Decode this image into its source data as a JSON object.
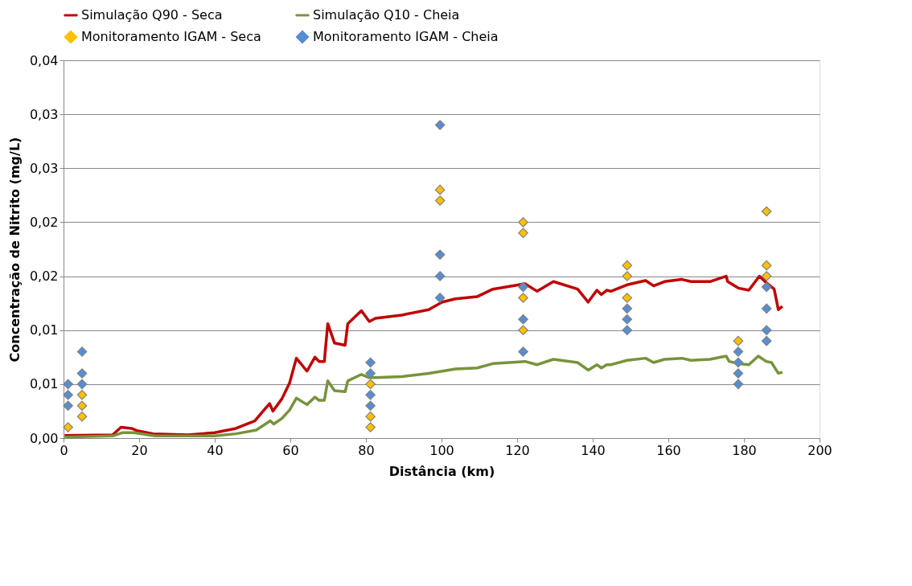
{
  "chart_data": {
    "type": "line",
    "xlabel": "Distância (km)",
    "ylabel": "Concentração de Nitrito (mg/L)",
    "xlim": [
      0,
      200
    ],
    "xticks": [
      0,
      20,
      40,
      60,
      80,
      100,
      120,
      140,
      160,
      180,
      200
    ],
    "ylim": [
      0,
      0.035
    ],
    "yticks": [
      {
        "value": 0,
        "label": "0,00"
      },
      {
        "value": 0.005,
        "label": "0,01"
      },
      {
        "value": 0.01,
        "label": "0,01"
      },
      {
        "value": 0.015,
        "label": "0,02"
      },
      {
        "value": 0.02,
        "label": "0,02"
      },
      {
        "value": 0.025,
        "label": "0,03"
      },
      {
        "value": 0.03,
        "label": "0,03"
      },
      {
        "value": 0.035,
        "label": "0,04"
      }
    ],
    "grid": "y",
    "legend": "top",
    "line_style": "solid",
    "series": [
      {
        "name": "Simulação Q90 - Seca",
        "marker": "none",
        "color": "#c00000",
        "x": [
          0.3,
          13,
          15.2,
          18,
          19.4,
          23.7,
          32.9,
          40,
          45.6,
          50.6,
          54.5,
          55.4,
          57.7,
          59.8,
          61.6,
          64.4,
          66.5,
          67.6,
          69,
          69.9,
          71.7,
          74.5,
          75.2,
          78.8,
          80.9,
          82.5,
          89.5,
          96.6,
          100.2,
          103.7,
          109.4,
          113.6,
          122.1,
          125.3,
          129.6,
          136,
          138.8,
          141.1,
          142.3,
          143.7,
          144.8,
          149.1,
          154,
          156.1,
          159,
          163.6,
          166,
          171,
          175.3,
          175.7,
          178.5,
          181.3,
          184.1,
          185.9,
          188,
          189.1,
          190.2
        ],
        "values": [
          0.00025,
          0.0003,
          0.001,
          0.0009,
          0.0007,
          0.0004,
          0.0003,
          0.0005,
          0.0009,
          0.0016,
          0.0032,
          0.0025,
          0.0036,
          0.0051,
          0.0074,
          0.0062,
          0.0075,
          0.0071,
          0.0071,
          0.0106,
          0.0088,
          0.0086,
          0.0106,
          0.0118,
          0.0108,
          0.0111,
          0.0114,
          0.0119,
          0.0126,
          0.0129,
          0.0131,
          0.0138,
          0.0143,
          0.0136,
          0.0145,
          0.0138,
          0.0126,
          0.0137,
          0.0133,
          0.0137,
          0.0136,
          0.0142,
          0.0146,
          0.0141,
          0.0145,
          0.0147,
          0.0145,
          0.0145,
          0.015,
          0.0145,
          0.0139,
          0.0137,
          0.015,
          0.0144,
          0.0138,
          0.0119,
          0.0122
        ]
      },
      {
        "name": "Simulação Q10 - Cheia",
        "marker": "none",
        "color": "#77933c",
        "x": [
          0.3,
          13,
          15.5,
          18.6,
          24.3,
          40,
          45.6,
          51,
          54.7,
          55.6,
          57.7,
          59.8,
          61.6,
          64.4,
          66.5,
          67.6,
          69,
          69.9,
          71.7,
          74.5,
          75.2,
          78.8,
          80.9,
          82.5,
          89.5,
          96.6,
          100.2,
          103.7,
          109.4,
          113.6,
          122.1,
          125.3,
          129.6,
          136,
          138.8,
          141.1,
          142.3,
          143.7,
          144.8,
          149.1,
          154,
          156.1,
          159,
          163.6,
          166,
          171,
          175.3,
          176.1,
          178.5,
          181.3,
          183.8,
          185.9,
          187.3,
          189.1,
          190.2
        ],
        "values": [
          0.0001,
          0.0002,
          0.0005,
          0.0005,
          0.0002,
          0.0002,
          0.0004,
          0.00075,
          0.0016,
          0.0013,
          0.0018,
          0.0026,
          0.0037,
          0.0031,
          0.0038,
          0.0035,
          0.0035,
          0.0053,
          0.0044,
          0.0043,
          0.0053,
          0.0059,
          0.0056,
          0.0056,
          0.0057,
          0.006,
          0.0062,
          0.0064,
          0.0065,
          0.0069,
          0.0071,
          0.0068,
          0.0073,
          0.007,
          0.0063,
          0.0068,
          0.0065,
          0.0068,
          0.0068,
          0.0072,
          0.0074,
          0.007,
          0.0073,
          0.0074,
          0.0072,
          0.0073,
          0.0076,
          0.0071,
          0.0069,
          0.0068,
          0.0076,
          0.0071,
          0.007,
          0.006,
          0.0061
        ]
      },
      {
        "name": "Monitoramento IGAM - Seca",
        "type": "scatter",
        "marker": "diamond",
        "color": "#ffc000",
        "x": [
          1.2,
          4.9,
          4.9,
          4.9,
          81.2,
          81.2,
          81.2,
          99.6,
          99.6,
          121.6,
          121.6,
          121.6,
          121.6,
          149.1,
          149.1,
          149.1,
          178.5,
          186,
          186,
          186
        ],
        "values": [
          0.001,
          0.004,
          0.003,
          0.002,
          0.005,
          0.002,
          0.001,
          0.023,
          0.022,
          0.02,
          0.019,
          0.013,
          0.01,
          0.016,
          0.015,
          0.013,
          0.009,
          0.021,
          0.016,
          0.015
        ]
      },
      {
        "name": "Monitoramento IGAM - Cheia",
        "type": "scatter",
        "marker": "diamond",
        "color": "#558ed5",
        "x": [
          1.2,
          1.2,
          1.2,
          4.9,
          4.9,
          4.9,
          81.2,
          81.2,
          81.2,
          81.2,
          99.6,
          99.6,
          99.6,
          99.6,
          121.6,
          121.6,
          121.6,
          149.1,
          149.1,
          149.1,
          178.5,
          178.5,
          178.5,
          178.5,
          186,
          186,
          186,
          186
        ],
        "values": [
          0.005,
          0.004,
          0.003,
          0.008,
          0.006,
          0.005,
          0.007,
          0.006,
          0.004,
          0.003,
          0.029,
          0.017,
          0.015,
          0.013,
          0.014,
          0.011,
          0.008,
          0.012,
          0.011,
          0.01,
          0.008,
          0.007,
          0.006,
          0.005,
          0.014,
          0.012,
          0.01,
          0.009
        ]
      }
    ]
  }
}
